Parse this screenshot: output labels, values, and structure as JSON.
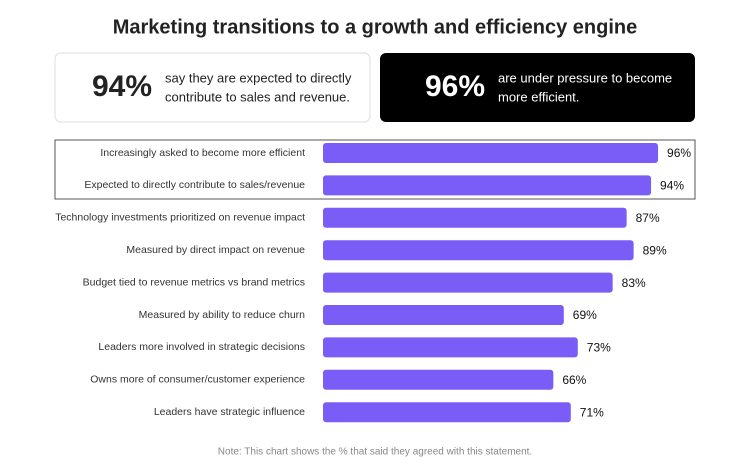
{
  "title": "Marketing transitions to a growth and efficiency engine",
  "callouts": [
    {
      "stat": "94%",
      "text_lines": [
        "say they are expected to directly",
        "contribute to sales and revenue."
      ]
    },
    {
      "stat": "96%",
      "text_lines": [
        "are under pressure to become",
        "more efficient."
      ]
    }
  ],
  "chart_data": {
    "type": "bar",
    "orientation": "horizontal",
    "categories": [
      "Increasingly asked to become more efficient",
      "Expected to directly contribute to sales/revenue",
      "Technology investments prioritized on revenue impact",
      "Measured by direct impact on revenue",
      "Budget tied to revenue metrics vs brand metrics",
      "Measured by ability to reduce churn",
      "Leaders more involved in strategic decisions",
      "Owns more of consumer/customer experience",
      "Leaders have strategic influence"
    ],
    "values": [
      96,
      94,
      87,
      89,
      83,
      69,
      73,
      66,
      71
    ],
    "value_labels": [
      "96%",
      "94%",
      "87%",
      "89%",
      "83%",
      "69%",
      "73%",
      "66%",
      "71%"
    ],
    "color": "#7a5cf6",
    "xlim": [
      0,
      100
    ],
    "note": "Note: This chart shows the % that said they agreed with this statement."
  }
}
